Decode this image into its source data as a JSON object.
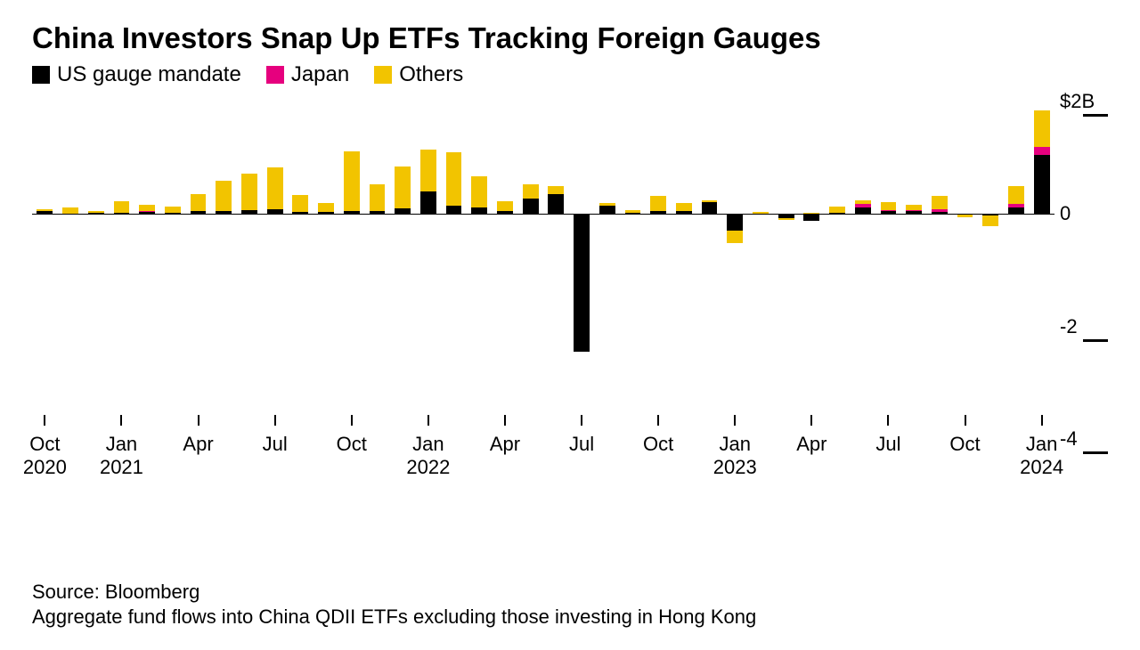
{
  "title": "China Investors Snap Up ETFs Tracking Foreign Gauges",
  "legend": [
    {
      "label": "US gauge mandate",
      "color": "#000000"
    },
    {
      "label": "Japan",
      "color": "#e6007e"
    },
    {
      "label": "Others",
      "color": "#f2c400"
    }
  ],
  "source_line": "Source: Bloomberg",
  "note_line": "Aggregate fund flows into China QDII ETFs excluding those investing in Hong Kong",
  "chart": {
    "type": "stacked-bar",
    "y_unit_suffix": "B",
    "ylim": [
      -4.4,
      2.1
    ],
    "yticks": [
      {
        "value": 2,
        "label": "$2B",
        "mark": true
      },
      {
        "value": 0,
        "label": "0",
        "mark": false
      },
      {
        "value": -2,
        "label": "-2",
        "mark": true
      },
      {
        "value": -4,
        "label": "-4",
        "mark": true
      }
    ],
    "xticks": [
      {
        "index": 0,
        "label": "Oct\n2020"
      },
      {
        "index": 3,
        "label": "Jan\n2021"
      },
      {
        "index": 6,
        "label": "Apr"
      },
      {
        "index": 9,
        "label": "Jul"
      },
      {
        "index": 12,
        "label": "Oct"
      },
      {
        "index": 15,
        "label": "Jan\n2022"
      },
      {
        "index": 18,
        "label": "Apr"
      },
      {
        "index": 21,
        "label": "Jul"
      },
      {
        "index": 24,
        "label": "Oct"
      },
      {
        "index": 27,
        "label": "Jan\n2023"
      },
      {
        "index": 30,
        "label": "Apr"
      },
      {
        "index": 33,
        "label": "Jul"
      },
      {
        "index": 36,
        "label": "Oct"
      },
      {
        "index": 39,
        "label": "Jan\n2024"
      }
    ],
    "bar_width_ratio": 0.62,
    "colors": {
      "us": "#000000",
      "japan": "#e6007e",
      "others": "#f2c400"
    },
    "background_color": "#ffffff",
    "axis_color": "#000000",
    "label_fontsize": 22,
    "title_fontsize": 33,
    "series": [
      {
        "us": 0.05,
        "japan": 0.0,
        "others": 0.03
      },
      {
        "us": 0.0,
        "japan": 0.0,
        "others": 0.12
      },
      {
        "us": 0.02,
        "japan": 0.0,
        "others": 0.03
      },
      {
        "us": 0.03,
        "japan": 0.0,
        "others": 0.2
      },
      {
        "us": 0.04,
        "japan": 0.02,
        "others": 0.1
      },
      {
        "us": 0.03,
        "japan": 0.0,
        "others": 0.1
      },
      {
        "us": 0.05,
        "japan": 0.0,
        "others": 0.3
      },
      {
        "us": 0.05,
        "japan": 0.0,
        "others": 0.55
      },
      {
        "us": 0.07,
        "japan": 0.0,
        "others": 0.65
      },
      {
        "us": 0.08,
        "japan": 0.0,
        "others": 0.75
      },
      {
        "us": 0.04,
        "japan": 0.0,
        "others": 0.3
      },
      {
        "us": 0.04,
        "japan": 0.0,
        "others": 0.15
      },
      {
        "us": 0.06,
        "japan": 0.0,
        "others": 1.05
      },
      {
        "us": 0.05,
        "japan": 0.0,
        "others": 0.48
      },
      {
        "us": 0.1,
        "japan": 0.0,
        "others": 0.75
      },
      {
        "us": 0.4,
        "japan": 0.0,
        "others": 0.75
      },
      {
        "us": 0.15,
        "japan": 0.0,
        "others": 0.95
      },
      {
        "us": 0.12,
        "japan": 0.0,
        "others": 0.55
      },
      {
        "us": 0.05,
        "japan": 0.0,
        "others": 0.18
      },
      {
        "us": 0.28,
        "japan": 0.0,
        "others": 0.25
      },
      {
        "us": 0.35,
        "japan": 0.0,
        "others": 0.15
      },
      {
        "us": -2.45,
        "japan": 0.0,
        "others": 0.0
      },
      {
        "us": 0.15,
        "japan": 0.0,
        "others": 0.05
      },
      {
        "us": 0.02,
        "japan": 0.0,
        "others": 0.05
      },
      {
        "us": 0.05,
        "japan": 0.0,
        "others": 0.28
      },
      {
        "us": 0.05,
        "japan": 0.0,
        "others": 0.15
      },
      {
        "us": 0.22,
        "japan": 0.0,
        "others": 0.02
      },
      {
        "us": -0.3,
        "japan": 0.0,
        "others": -0.22
      },
      {
        "us": 0.0,
        "japan": 0.0,
        "others": 0.04
      },
      {
        "us": -0.07,
        "japan": 0.0,
        "others": -0.04
      },
      {
        "us": -0.12,
        "japan": 0.0,
        "others": 0.03
      },
      {
        "us": 0.03,
        "japan": 0.0,
        "others": 0.1
      },
      {
        "us": 0.12,
        "japan": 0.06,
        "others": 0.06
      },
      {
        "us": 0.05,
        "japan": 0.02,
        "others": 0.15
      },
      {
        "us": 0.05,
        "japan": 0.02,
        "others": 0.1
      },
      {
        "us": 0.04,
        "japan": 0.04,
        "others": 0.25
      },
      {
        "us": 0.0,
        "japan": 0.0,
        "others": -0.05
      },
      {
        "us": -0.03,
        "japan": 0.0,
        "others": -0.18
      },
      {
        "us": 0.12,
        "japan": 0.06,
        "others": 0.32
      },
      {
        "us": 1.05,
        "japan": 0.15,
        "others": 0.65
      }
    ]
  }
}
